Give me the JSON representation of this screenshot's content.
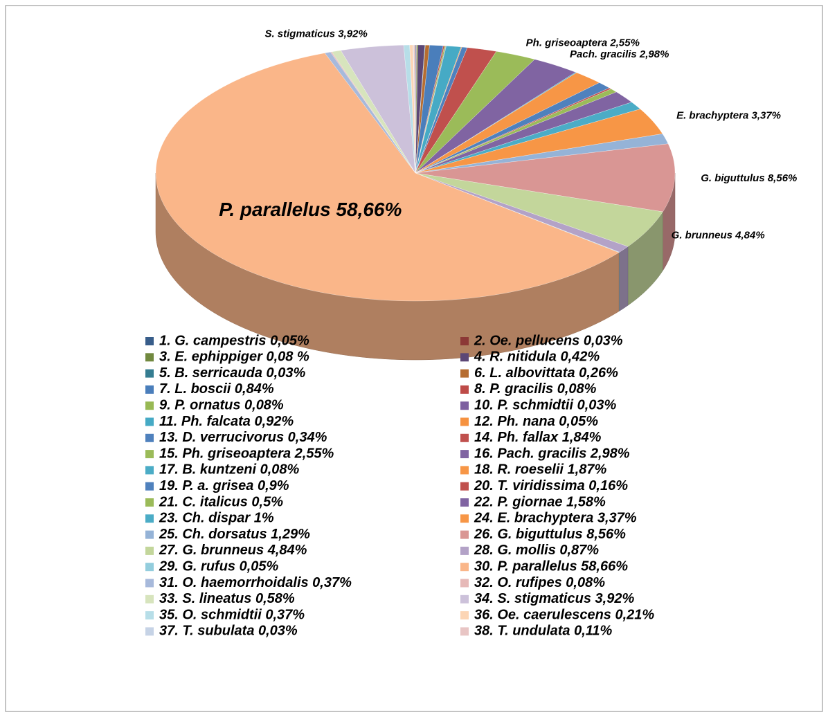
{
  "chart_data": {
    "type": "pie",
    "categories": [
      "1. G. campestris 0,05%",
      "2. Oe. pellucens 0,03%",
      "3. E. ephippiger 0,08 %",
      "4. R. nitidula 0,42%",
      "5. B. serricauda 0,03%",
      "6. L. albovittata 0,26%",
      "7. L. boscii 0,84%",
      "8. P. gracilis 0,08%",
      "9. P. ornatus 0,08%",
      "10. P. schmidtii 0,03%",
      "11. Ph. falcata 0,92%",
      "12. Ph. nana 0,05%",
      "13. D. verrucivorus 0,34%",
      "14. Ph. fallax 1,84%",
      "15. Ph. griseoaptera 2,55%",
      "16. Pach. gracilis 2,98%",
      "17. B. kuntzeni 0,08%",
      "18. R. roeselii 1,87%",
      "19. P. a. grisea 0,9%",
      "20. T. viridissima 0,16%",
      "21. C. italicus 0,5%",
      "22. P. giornae 1,58%",
      "23. Ch. dispar 1%",
      "24. E. brachyptera 3,37%",
      "25. Ch. dorsatus 1,29%",
      "26. G. biguttulus 8,56%",
      "27. G. brunneus 4,84%",
      "28. G. mollis 0,87%",
      "29. G. rufus 0,05%",
      "30. P. parallelus 58,66%",
      "31. O. haemorrhoidalis 0,37%",
      "32. O. rufipes 0,08%",
      "33. S. lineatus 0,58%",
      "34. S. stigmaticus 3,92%",
      "35. O. schmidtii 0,37%",
      "36. Oe. caerulescens 0,21%",
      "37. T. subulata 0,03%",
      "38. T. undulata 0,11%"
    ],
    "values": [
      0.05,
      0.03,
      0.08,
      0.42,
      0.03,
      0.26,
      0.84,
      0.08,
      0.08,
      0.03,
      0.92,
      0.05,
      0.34,
      1.84,
      2.55,
      2.98,
      0.08,
      1.87,
      0.9,
      0.16,
      0.5,
      1.58,
      1,
      3.37,
      1.29,
      8.56,
      4.84,
      0.87,
      0.05,
      58.66,
      0.37,
      0.08,
      0.58,
      3.92,
      0.37,
      0.21,
      0.03,
      0.11
    ],
    "value_labels": [
      null,
      null,
      null,
      null,
      null,
      null,
      null,
      null,
      null,
      null,
      null,
      null,
      null,
      null,
      "Ph. griseoaptera 2,55%",
      "Pach. gracilis 2,98%",
      null,
      null,
      null,
      null,
      null,
      null,
      null,
      "E. brachyptera 3,37%",
      null,
      "G. biguttulus 8,56%",
      "G. brunneus 4,84%",
      null,
      null,
      "P. parallelus 58,66%",
      null,
      null,
      null,
      "S. stigmaticus 3,92%",
      null,
      null,
      null,
      null
    ],
    "colors": [
      "#385d8a",
      "#8c3836",
      "#71893f",
      "#5c4776",
      "#357d91",
      "#b66d31",
      "#4a7ebb",
      "#be4b48",
      "#98b954",
      "#7d60a0",
      "#46aac5",
      "#f69240",
      "#4f81bd",
      "#c0504d",
      "#9bbb59",
      "#8064a2",
      "#4bacc6",
      "#f79646",
      "#4f81bd",
      "#c0504d",
      "#9bbb59",
      "#8064a2",
      "#4bacc6",
      "#f79646",
      "#95b3d7",
      "#d99694",
      "#c3d69b",
      "#b3a2c7",
      "#93cddd",
      "#fab689",
      "#a7b9db",
      "#e6b9b8",
      "#d7e4bd",
      "#ccc1da",
      "#b7dee8",
      "#fcd5b5",
      "#c6d3e6",
      "#e8c5c4"
    ],
    "legend": "bottom"
  }
}
